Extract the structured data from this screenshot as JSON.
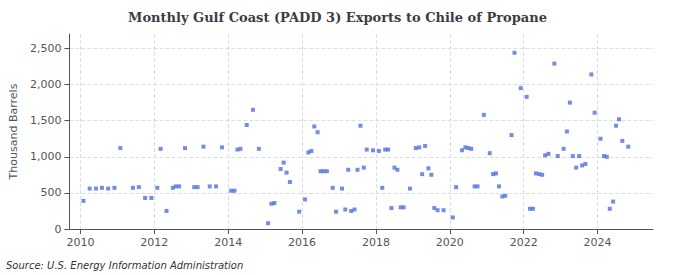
{
  "chart_data": {
    "type": "scatter",
    "title": "Monthly Gulf Coast (PADD 3) Exports to Chile of Propane",
    "ylabel": "Thousand Barrels",
    "source": "Source: U.S. Energy Information Administration",
    "marker": "square",
    "grid": true,
    "xlim": [
      2009.7,
      2025.5
    ],
    "xticks": [
      2010,
      2012,
      2014,
      2016,
      2018,
      2020,
      2022,
      2024
    ],
    "ylim": [
      0,
      2700
    ],
    "yticks": [
      0,
      500,
      {
        "value": 1000,
        "label": "1,000"
      },
      {
        "value": 1500,
        "label": "1,500"
      },
      {
        "value": 2000,
        "label": "2,000"
      },
      {
        "value": 2500,
        "label": "2,500"
      }
    ],
    "x": [
      2010.08,
      2010.25,
      2010.42,
      2010.58,
      2010.75,
      2010.92,
      2011.08,
      2011.42,
      2011.58,
      2011.75,
      2011.92,
      2012.08,
      2012.17,
      2012.33,
      2012.5,
      2012.58,
      2012.67,
      2012.83,
      2013.08,
      2013.17,
      2013.33,
      2013.5,
      2013.67,
      2013.83,
      2014.08,
      2014.17,
      2014.25,
      2014.33,
      2014.5,
      2014.67,
      2014.83,
      2015.08,
      2015.17,
      2015.25,
      2015.42,
      2015.5,
      2015.58,
      2015.67,
      2015.92,
      2016.08,
      2016.17,
      2016.25,
      2016.33,
      2016.42,
      2016.5,
      2016.58,
      2016.67,
      2016.83,
      2016.92,
      2017.08,
      2017.17,
      2017.25,
      2017.33,
      2017.42,
      2017.5,
      2017.58,
      2017.67,
      2017.75,
      2017.92,
      2018.08,
      2018.17,
      2018.25,
      2018.33,
      2018.42,
      2018.5,
      2018.58,
      2018.67,
      2018.75,
      2018.92,
      2019.08,
      2019.17,
      2019.25,
      2019.33,
      2019.42,
      2019.5,
      2019.58,
      2019.67,
      2019.83,
      2020.08,
      2020.17,
      2020.33,
      2020.42,
      2020.5,
      2020.58,
      2020.67,
      2020.75,
      2020.92,
      2021.08,
      2021.17,
      2021.25,
      2021.33,
      2021.42,
      2021.5,
      2021.67,
      2021.75,
      2021.92,
      2022.08,
      2022.17,
      2022.25,
      2022.33,
      2022.42,
      2022.5,
      2022.58,
      2022.67,
      2022.83,
      2022.92,
      2023.08,
      2023.17,
      2023.25,
      2023.33,
      2023.42,
      2023.5,
      2023.58,
      2023.67,
      2023.83,
      2023.92,
      2024.08,
      2024.17,
      2024.25,
      2024.33,
      2024.42,
      2024.5,
      2024.58,
      2024.67,
      2024.83
    ],
    "values": [
      390,
      560,
      560,
      570,
      560,
      570,
      1120,
      570,
      580,
      430,
      430,
      570,
      1110,
      250,
      570,
      590,
      590,
      1120,
      580,
      580,
      1140,
      590,
      590,
      1130,
      530,
      530,
      1100,
      1110,
      1440,
      1650,
      1110,
      80,
      350,
      360,
      830,
      920,
      780,
      650,
      240,
      410,
      1060,
      1080,
      1420,
      1340,
      800,
      800,
      800,
      570,
      240,
      560,
      270,
      820,
      250,
      270,
      820,
      1430,
      850,
      1100,
      1090,
      1080,
      570,
      1100,
      1100,
      290,
      850,
      820,
      300,
      300,
      560,
      1120,
      1130,
      760,
      1150,
      840,
      750,
      290,
      260,
      260,
      160,
      580,
      1090,
      1130,
      1120,
      1110,
      590,
      590,
      1580,
      1050,
      760,
      770,
      590,
      450,
      460,
      1300,
      2440,
      1950,
      1830,
      280,
      280,
      770,
      760,
      750,
      1020,
      1040,
      2290,
      1010,
      1110,
      1350,
      1750,
      1010,
      850,
      1010,
      880,
      900,
      2140,
      1610,
      1250,
      1010,
      1000,
      280,
      380,
      1430,
      1520,
      1220,
      1140
    ]
  }
}
